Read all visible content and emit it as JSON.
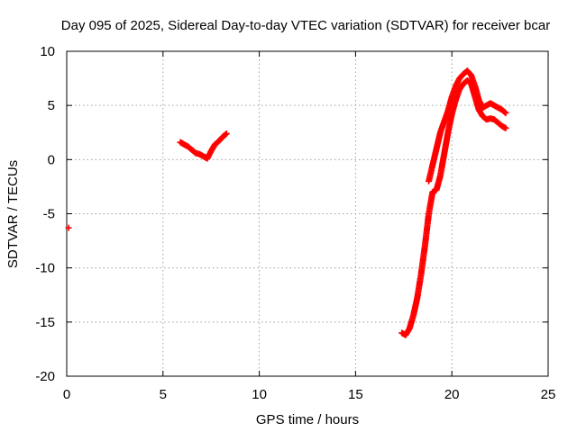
{
  "chart_data": {
    "type": "scatter",
    "title": "Day 095 of 2025, Sidereal Day-to-day VTEC variation (SDTVAR) for receiver bcar",
    "xlabel": "GPS time / hours",
    "ylabel": "SDTVAR / TECUs",
    "xlim": [
      0,
      25
    ],
    "ylim": [
      -20,
      10
    ],
    "xticks": [
      0,
      5,
      10,
      15,
      20,
      25
    ],
    "yticks": [
      -20,
      -15,
      -10,
      -5,
      0,
      5,
      10
    ],
    "xtick_labels": [
      "0",
      "5",
      "10",
      "15",
      "20",
      "25"
    ],
    "ytick_labels": [
      "-20",
      "-15",
      "-10",
      "-5",
      "0",
      "5",
      "10"
    ],
    "grid": true,
    "legend": "none",
    "marker": "plus",
    "marker_color": "#ff0000",
    "series": [
      {
        "x": [
          0.1
        ],
        "y": [
          -6.3
        ]
      },
      {
        "x": [
          5.9,
          6.1,
          6.3,
          6.5,
          6.7,
          6.9,
          7.1,
          7.3,
          7.5,
          7.7,
          7.9,
          8.1,
          8.3
        ],
        "y": [
          1.6,
          1.4,
          1.2,
          0.9,
          0.6,
          0.5,
          0.3,
          0.1,
          0.8,
          1.4,
          1.7,
          2.1,
          2.4
        ]
      },
      {
        "x": [
          17.4,
          17.6,
          17.8,
          18.0,
          18.2,
          18.4,
          18.6,
          18.8,
          19.0,
          19.2,
          19.4,
          19.6,
          19.8,
          20.0,
          20.2,
          20.4,
          20.6,
          20.8,
          21.0,
          21.2,
          21.4,
          21.6,
          21.8,
          22.0,
          22.2,
          22.4,
          22.6,
          22.8
        ],
        "y": [
          -16.0,
          -16.2,
          -15.6,
          -14.4,
          -12.8,
          -10.6,
          -8.0,
          -5.0,
          -3.0,
          -2.8,
          -1.5,
          0.5,
          2.5,
          4.2,
          5.5,
          6.5,
          7.0,
          7.3,
          7.0,
          5.8,
          4.6,
          4.0,
          3.7,
          3.8,
          3.7,
          3.4,
          3.1,
          2.9
        ]
      },
      {
        "x": [
          18.8,
          19.0,
          19.2,
          19.4,
          19.6,
          19.8,
          20.0,
          20.2,
          20.4,
          20.6,
          20.8,
          21.0,
          21.2,
          21.4,
          21.6,
          21.8,
          22.0,
          22.2,
          22.4,
          22.6,
          22.8
        ],
        "y": [
          -2.0,
          -0.5,
          1.0,
          2.5,
          3.5,
          4.5,
          5.8,
          6.8,
          7.5,
          7.9,
          8.2,
          7.8,
          6.8,
          5.5,
          4.8,
          5.0,
          5.2,
          5.0,
          4.8,
          4.6,
          4.3
        ]
      }
    ]
  }
}
